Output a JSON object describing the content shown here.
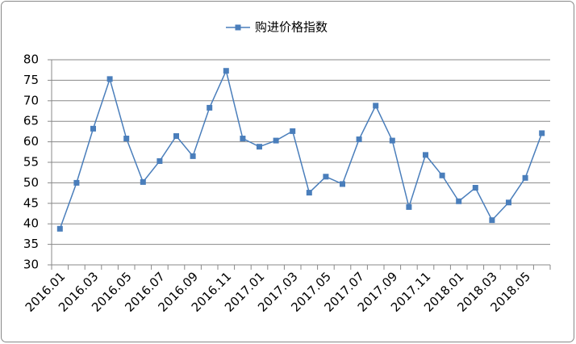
{
  "chart_data": {
    "type": "line",
    "categories": [
      "2016.01",
      null,
      "2016.03",
      null,
      "2016.05",
      null,
      "2016.07",
      null,
      "2016.09",
      null,
      "2016.11",
      null,
      "2017.01",
      null,
      "2017.03",
      null,
      "2017.05",
      null,
      "2017.07",
      null,
      "2017.09",
      null,
      "2017.11",
      null,
      "2018.01",
      null,
      "2018.03",
      null,
      "2018.05",
      null
    ],
    "series": [
      {
        "name": "购进价格指数",
        "color": "#4a7ebb",
        "values": [
          38.8,
          50.0,
          63.2,
          75.3,
          60.8,
          50.2,
          55.3,
          61.4,
          56.5,
          68.3,
          77.3,
          60.8,
          58.8,
          60.3,
          62.6,
          47.6,
          51.5,
          49.7,
          60.6,
          68.8,
          60.3,
          44.1,
          56.8,
          51.8,
          45.5,
          48.8,
          40.9,
          45.2,
          51.2,
          62.1
        ]
      }
    ],
    "ylim": [
      30,
      80
    ],
    "yticks": [
      30,
      35,
      40,
      45,
      50,
      55,
      60,
      65,
      70,
      75,
      80
    ],
    "grid": true,
    "legend": "top"
  }
}
